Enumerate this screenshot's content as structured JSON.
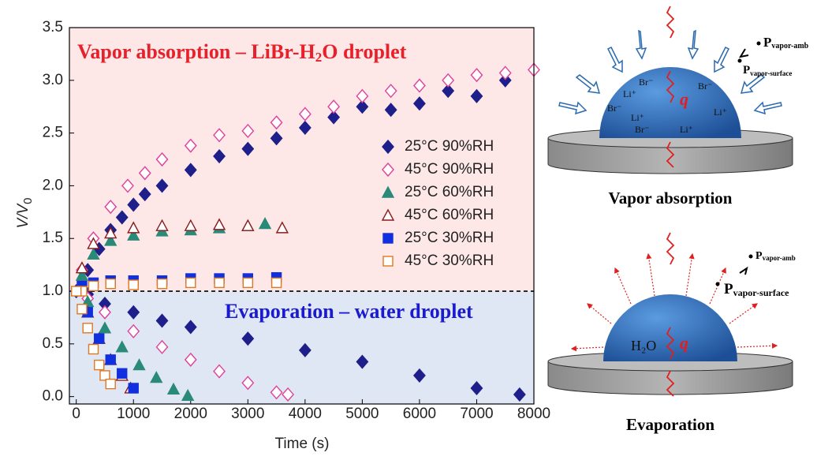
{
  "chart_data": {
    "type": "scatter",
    "x_label": "Time (s)",
    "y_label": {
      "main": "V/V",
      "sub": "0"
    },
    "annotations": [
      {
        "parts": [
          "Vapor absorption – LiBr-H",
          "2",
          "O droplet"
        ],
        "color": "#e8202a"
      },
      {
        "parts": [
          "Evaporation – water droplet"
        ],
        "color": "#1a1ad0"
      }
    ],
    "threshold": 1,
    "xlim": [
      -120,
      8000
    ],
    "ylim": [
      -0.07,
      3.5
    ],
    "xticks": [
      0,
      1000,
      2000,
      3000,
      4000,
      5000,
      6000,
      7000,
      8000
    ],
    "yticks": [
      {
        "value": 0,
        "label": "0.0"
      },
      0.5,
      {
        "value": 1,
        "label": "1.0"
      },
      1.5,
      {
        "value": 2,
        "label": "2.0"
      },
      2.5,
      {
        "value": 3,
        "label": "3.0"
      },
      3.5
    ],
    "series": [
      {
        "name": "25°C 90%RH",
        "color": "#1f1f8c",
        "marker": "diamond",
        "filled": true,
        "x": [
          0,
          200,
          400,
          600,
          800,
          1000,
          1200,
          1500,
          2000,
          2500,
          3000,
          3500,
          4000,
          4500,
          5000,
          5500,
          6000,
          6500,
          7000,
          7500,
          200,
          500,
          1000,
          1500,
          2000,
          3000,
          4000,
          5000,
          6000,
          7000,
          7750
        ],
        "values": [
          1.0,
          1.2,
          1.4,
          1.58,
          1.7,
          1.82,
          1.92,
          2.0,
          2.15,
          2.28,
          2.35,
          2.45,
          2.55,
          2.65,
          2.75,
          2.72,
          2.78,
          2.9,
          2.85,
          3.0,
          0.97,
          0.88,
          0.8,
          0.72,
          0.66,
          0.55,
          0.44,
          0.33,
          0.2,
          0.08,
          0.02
        ]
      },
      {
        "name": "45°C 90%RH",
        "color": "#e0409a",
        "marker": "diamond",
        "filled": false,
        "x": [
          100,
          300,
          600,
          900,
          1200,
          1500,
          2000,
          2500,
          3000,
          3500,
          4000,
          4500,
          5000,
          5500,
          6000,
          6500,
          7000,
          7500,
          8000,
          200,
          500,
          1000,
          1500,
          2000,
          2500,
          3000,
          3500,
          3700
        ],
        "values": [
          1.2,
          1.5,
          1.8,
          2.0,
          2.12,
          2.25,
          2.38,
          2.48,
          2.52,
          2.6,
          2.68,
          2.75,
          2.85,
          2.9,
          2.95,
          3.0,
          3.05,
          3.07,
          3.1,
          0.93,
          0.8,
          0.62,
          0.47,
          0.35,
          0.24,
          0.13,
          0.04,
          0.02
        ]
      },
      {
        "name": "25°C 60%RH",
        "color": "#2a8a7a",
        "marker": "triangle",
        "filled": true,
        "x": [
          100,
          300,
          600,
          1000,
          1500,
          2000,
          2500,
          3000,
          3300,
          200,
          500,
          800,
          1100,
          1400,
          1700,
          1950
        ],
        "values": [
          1.15,
          1.35,
          1.48,
          1.53,
          1.57,
          1.58,
          1.6,
          1.62,
          1.64,
          0.9,
          0.65,
          0.47,
          0.3,
          0.18,
          0.07,
          0.01
        ]
      },
      {
        "name": "45°C 60%RH",
        "color": "#8b1a1a",
        "marker": "triangle",
        "filled": false,
        "x": [
          100,
          300,
          600,
          1000,
          1500,
          2000,
          2500,
          3000,
          3600,
          200,
          400,
          600,
          800,
          950
        ],
        "values": [
          1.22,
          1.45,
          1.55,
          1.6,
          1.62,
          1.62,
          1.63,
          1.62,
          1.6,
          0.8,
          0.55,
          0.35,
          0.2,
          0.08
        ]
      },
      {
        "name": "25°C 30%RH",
        "color": "#1030e0",
        "marker": "square",
        "filled": true,
        "x": [
          100,
          300,
          600,
          1000,
          1500,
          2000,
          2500,
          3000,
          3500,
          200,
          400,
          600,
          800,
          1000
        ],
        "values": [
          1.05,
          1.08,
          1.1,
          1.1,
          1.1,
          1.12,
          1.12,
          1.12,
          1.13,
          0.8,
          0.55,
          0.35,
          0.22,
          0.08
        ]
      },
      {
        "name": "45°C 30%RH",
        "color": "#e07820",
        "marker": "square",
        "filled": false,
        "x": [
          100,
          300,
          600,
          1000,
          1500,
          2000,
          2500,
          3000,
          3500,
          0,
          100,
          200,
          300,
          400,
          500,
          600
        ],
        "values": [
          1.0,
          1.05,
          1.07,
          1.06,
          1.07,
          1.08,
          1.08,
          1.08,
          1.08,
          1.0,
          0.83,
          0.65,
          0.45,
          0.3,
          0.2,
          0.12
        ]
      }
    ]
  },
  "diagrams": {
    "absorption": {
      "title": "Vapor absorption",
      "ions": [
        "Br⁻",
        "Li⁺",
        "Br⁻",
        "Li⁺",
        "Br⁻",
        "Li⁺",
        "Br⁻",
        "Li⁺"
      ],
      "heat": "q",
      "p_amb": {
        "main": "P",
        "sub": "vapor-amb"
      },
      "p_surface": {
        "main": "P",
        "sub": "vapor-surface"
      }
    },
    "evaporation": {
      "title": "Evaporation",
      "liquid": "H₂O",
      "heat": "q",
      "p_amb": {
        "main": "P",
        "sub": "vapor-amb"
      },
      "p_surface": {
        "main": "P",
        "sub": "vapor-surface"
      }
    }
  }
}
